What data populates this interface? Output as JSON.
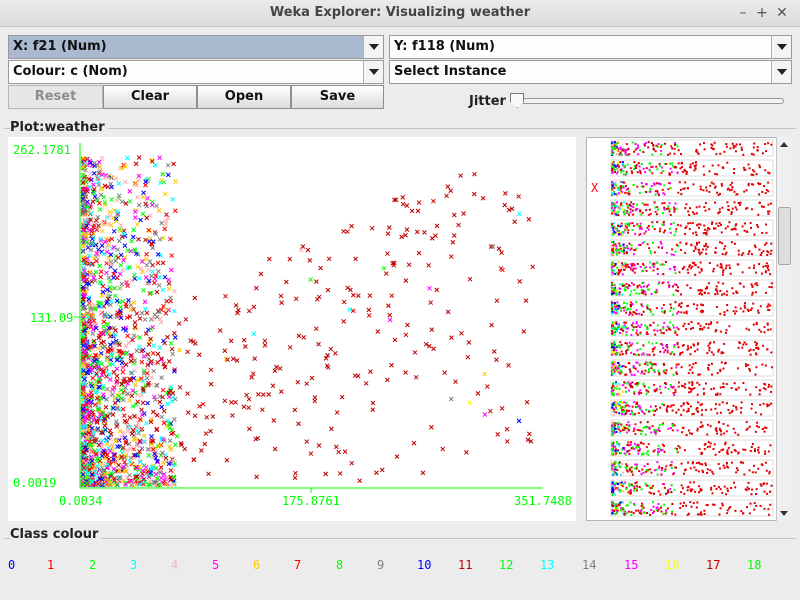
{
  "window": {
    "title": "Weka Explorer: Visualizing weather",
    "minimize_label": "–",
    "maximize_label": "+",
    "close_label": "✕"
  },
  "controls": {
    "x_axis": "X: f21 (Num)",
    "y_axis": "Y: f118 (Num)",
    "colour": "Colour: c (Nom)",
    "instance": "Select Instance",
    "reset_label": "Reset",
    "clear_label": "Clear",
    "open_label": "Open",
    "save_label": "Save",
    "jitter_label": "Jitter",
    "jitter_value": 0
  },
  "plot": {
    "group_label": "Plot:weather"
  },
  "attribute_panel": {
    "marker_label": "X",
    "rows": 19
  },
  "chart_data": {
    "type": "scatter",
    "title": "",
    "xlabel": "",
    "ylabel": "",
    "x_ticks": [
      "0.0034",
      "175.8761",
      "351.7488"
    ],
    "y_ticks": [
      "262.1781",
      "131.09",
      "0.0019"
    ],
    "xlim": [
      0.0034,
      351.7488
    ],
    "ylim": [
      0.0019,
      262.1781
    ],
    "axis_color": "#00ff00",
    "series_note_colors": {
      "0": "#0000ff",
      "1": "#ff0000",
      "2": "#00ff00",
      "3": "#00ffff",
      "4": "#ffafaf",
      "5": "#ff00ff",
      "6": "#ffc800",
      "7": "#ff0000",
      "8": "#00ff00",
      "9": "#808080",
      "10": "#0000ff",
      "11": "#c00000",
      "12": "#00ff00",
      "13": "#00ffff",
      "14": "#808080",
      "15": "#ff00ff",
      "16": "#ffff00",
      "17": "#c00000",
      "18": "#00ff00"
    }
  },
  "class_colour": {
    "label": "Class colour",
    "classes": [
      {
        "name": "0",
        "color": "#0000ff"
      },
      {
        "name": "1",
        "color": "#ff0000"
      },
      {
        "name": "2",
        "color": "#00ff00"
      },
      {
        "name": "3",
        "color": "#00ffff"
      },
      {
        "name": "4",
        "color": "#ffafaf"
      },
      {
        "name": "5",
        "color": "#ff00ff"
      },
      {
        "name": "6",
        "color": "#ffc800"
      },
      {
        "name": "7",
        "color": "#ff0000"
      },
      {
        "name": "8",
        "color": "#00ff00"
      },
      {
        "name": "9",
        "color": "#808080"
      },
      {
        "name": "10",
        "color": "#0000ff"
      },
      {
        "name": "11",
        "color": "#c00000"
      },
      {
        "name": "12",
        "color": "#00ff00"
      },
      {
        "name": "13",
        "color": "#00ffff"
      },
      {
        "name": "14",
        "color": "#808080"
      },
      {
        "name": "15",
        "color": "#ff00ff"
      },
      {
        "name": "16",
        "color": "#ffff00"
      },
      {
        "name": "17",
        "color": "#c00000"
      },
      {
        "name": "18",
        "color": "#00ff00"
      }
    ]
  }
}
